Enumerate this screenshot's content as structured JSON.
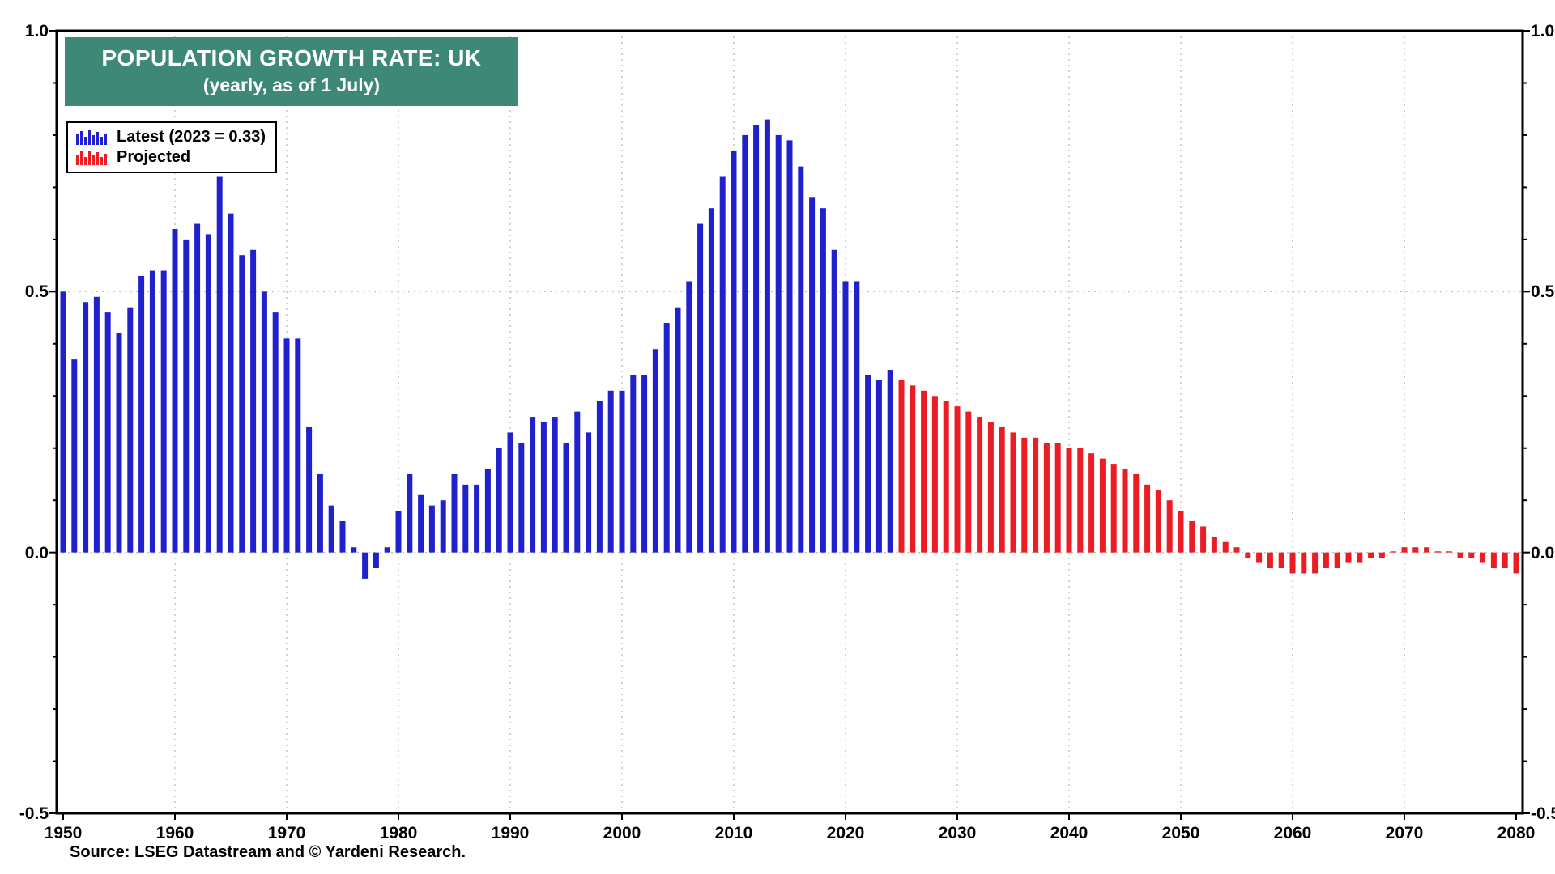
{
  "figure": {
    "source_note": "Source: LSEG Datastream and © Yardeni Research."
  },
  "title_box": {
    "title": "POPULATION GROWTH RATE: UK",
    "subtitle": "(yearly, as of 1 July)",
    "bg_color": "#3E8878",
    "text_color": "#FFFFFF"
  },
  "chart_data": {
    "type": "bar",
    "title": "POPULATION GROWTH RATE: UK",
    "subtitle": "(yearly, as of 1 July)",
    "ylim": [
      -0.5,
      1.0
    ],
    "ytick_values": [
      1.0,
      0.5,
      0.0,
      -0.5
    ],
    "ytick_labels": [
      "1.0",
      "0.5",
      "0.0",
      "-0.5"
    ],
    "grid_y": [
      0.5,
      0.0
    ],
    "x_range": [
      1950,
      2080
    ],
    "xtick_years": [
      1950,
      1960,
      1970,
      1980,
      1990,
      2000,
      2010,
      2020,
      2030,
      2040,
      2050,
      2060,
      2070,
      2080
    ],
    "legend_position": "top-left",
    "grid_style": "dotted",
    "series": [
      {
        "name": "Latest (2023 = 0.33)",
        "color": "#2121CC",
        "start_year": 1950,
        "values": [
          0.5,
          0.37,
          0.48,
          0.49,
          0.46,
          0.42,
          0.47,
          0.53,
          0.54,
          0.54,
          0.62,
          0.6,
          0.63,
          0.61,
          0.72,
          0.65,
          0.57,
          0.58,
          0.5,
          0.46,
          0.41,
          0.41,
          0.24,
          0.15,
          0.09,
          0.06,
          0.01,
          -0.05,
          -0.03,
          0.01,
          0.08,
          0.15,
          0.11,
          0.09,
          0.1,
          0.15,
          0.13,
          0.13,
          0.16,
          0.2,
          0.23,
          0.21,
          0.26,
          0.25,
          0.26,
          0.21,
          0.27,
          0.23,
          0.29,
          0.31,
          0.31,
          0.34,
          0.34,
          0.39,
          0.44,
          0.47,
          0.52,
          0.63,
          0.66,
          0.72,
          0.77,
          0.8,
          0.82,
          0.83,
          0.8,
          0.79,
          0.74,
          0.68,
          0.66,
          0.58,
          0.52,
          0.52,
          0.34,
          0.33,
          0.35
        ]
      },
      {
        "name": "Projected",
        "color": "#EC1C24",
        "start_year": 2025,
        "values": [
          0.33,
          0.32,
          0.31,
          0.3,
          0.29,
          0.28,
          0.27,
          0.26,
          0.25,
          0.24,
          0.23,
          0.22,
          0.22,
          0.21,
          0.21,
          0.2,
          0.2,
          0.19,
          0.18,
          0.17,
          0.16,
          0.15,
          0.13,
          0.12,
          0.1,
          0.08,
          0.06,
          0.05,
          0.03,
          0.02,
          0.01,
          -0.01,
          -0.02,
          -0.03,
          -0.03,
          -0.04,
          -0.04,
          -0.04,
          -0.03,
          -0.03,
          -0.02,
          -0.02,
          -0.01,
          -0.01,
          0.0,
          0.01,
          0.01,
          0.01,
          0.0,
          0.0,
          -0.01,
          -0.01,
          -0.02,
          -0.03,
          -0.03,
          -0.04
        ]
      }
    ]
  }
}
